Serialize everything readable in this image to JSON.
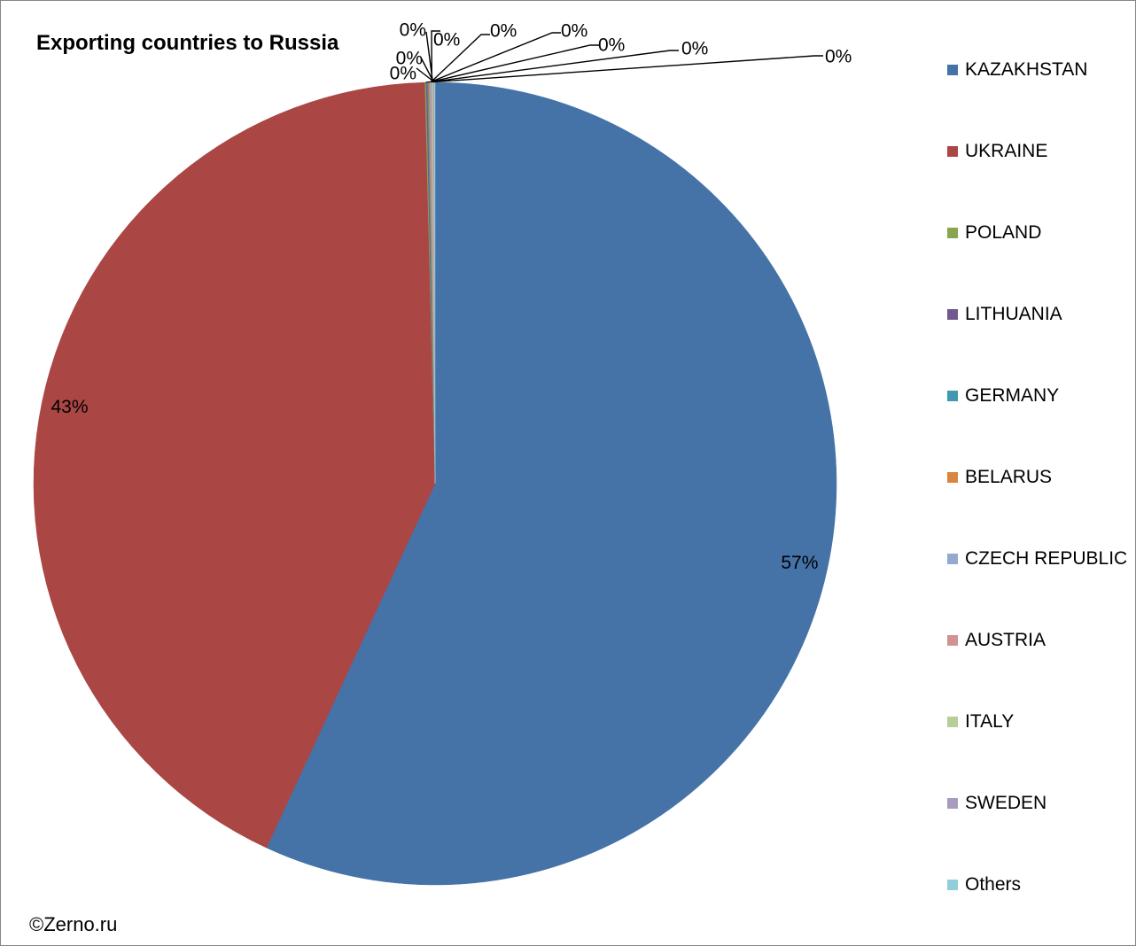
{
  "chart_data": {
    "type": "pie",
    "title": "Exporting countries to Russia",
    "categories": [
      "KAZAKHSTAN",
      "UKRAINE",
      "POLAND",
      "LITHUANIA",
      "GERMANY",
      "BELARUS",
      "CZECH REPUBLIC",
      "AUSTRIA",
      "ITALY",
      "SWEDEN",
      "Others"
    ],
    "values": [
      56.9,
      42.7,
      0.05,
      0.05,
      0.05,
      0.05,
      0.05,
      0.04,
      0.04,
      0.04,
      0.03
    ],
    "data_labels": [
      "57%",
      "43%",
      "0%",
      "0%",
      "0%",
      "0%",
      "0%",
      "0%",
      "0%",
      "0%",
      "0%"
    ],
    "colors": [
      "#4572A7",
      "#AA4643",
      "#89A54E",
      "#71588F",
      "#4198AF",
      "#DB843D",
      "#93A9CF",
      "#D19392",
      "#B9CD96",
      "#A99BBD",
      "#92CDDC"
    ],
    "legend_position": "right",
    "start_angle_deg": 0,
    "direction": "clockwise"
  },
  "footer": {
    "copyright": "©Zerno.ru"
  }
}
